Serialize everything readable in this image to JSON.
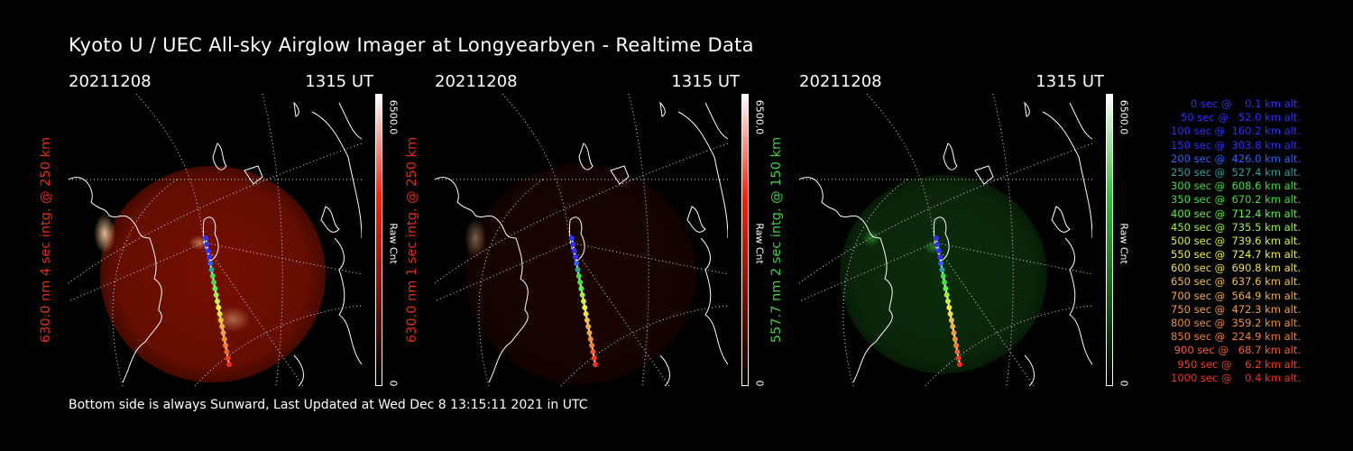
{
  "title": "Kyoto U / UEC All-sky Airglow Imager at Longyearbyen - Realtime Data",
  "footer": "Bottom side is always Sunward, Last Updated at Wed Dec  8 13:15:11 2021 in UTC",
  "panels": [
    {
      "date": "20211208",
      "time": "1315 UT",
      "side_label": "630.0 nm 4 sec intg. @ 250 km",
      "side_color": "#e03010",
      "cbar_max": "6500.0",
      "cbar_min": "0",
      "cbar_unit": "Raw Cnt",
      "image_color": "#8a1200",
      "image_brightness": 0.85,
      "cbar_gradient": "#ff2000"
    },
    {
      "date": "20211208",
      "time": "1315 UT",
      "side_label": "630.0 nm 1 sec intg. @ 250 km",
      "side_color": "#e03010",
      "cbar_max": "6500.0",
      "cbar_min": "0",
      "cbar_unit": "Raw Cnt",
      "image_color": "#3a0700",
      "image_brightness": 0.45,
      "cbar_gradient": "#ff2000"
    },
    {
      "date": "20211208",
      "time": "1315 UT",
      "side_label": "557.7 nm 2 sec intg. @ 150 km",
      "side_color": "#40d040",
      "cbar_max": "6500.0",
      "cbar_min": "0",
      "cbar_unit": "Raw Cnt",
      "image_color": "#124a12",
      "image_brightness": 0.6,
      "cbar_gradient": "#30c030"
    }
  ],
  "legend": [
    {
      "text": "   0 sec @    0.1 km alt.",
      "color": "#3030ff"
    },
    {
      "text": "  50 sec @   52.0 km alt.",
      "color": "#3030ff"
    },
    {
      "text": " 100 sec @  160.2 km alt.",
      "color": "#3030ff"
    },
    {
      "text": " 150 sec @  303.8 km alt.",
      "color": "#3030ff"
    },
    {
      "text": " 200 sec @  426.0 km alt.",
      "color": "#3060ff"
    },
    {
      "text": " 250 sec @  527.4 km alt.",
      "color": "#30a0a0"
    },
    {
      "text": " 300 sec @  608.6 km alt.",
      "color": "#40e040"
    },
    {
      "text": " 350 sec @  670.2 km alt.",
      "color": "#40e040"
    },
    {
      "text": " 400 sec @  712.4 km alt.",
      "color": "#60f040"
    },
    {
      "text": " 450 sec @  735.5 km alt.",
      "color": "#a0f040"
    },
    {
      "text": " 500 sec @  739.6 km alt.",
      "color": "#d0f040"
    },
    {
      "text": " 550 sec @  724.7 km alt.",
      "color": "#f0f040"
    },
    {
      "text": " 600 sec @  690.8 km alt.",
      "color": "#f0e040"
    },
    {
      "text": " 650 sec @  637.6 km alt.",
      "color": "#f0c040"
    },
    {
      "text": " 700 sec @  564.9 km alt.",
      "color": "#f0b040"
    },
    {
      "text": " 750 sec @  472.3 km alt.",
      "color": "#f0a040"
    },
    {
      "text": " 800 sec @  359.2 km alt.",
      "color": "#f09030"
    },
    {
      "text": " 850 sec @  224.9 km alt.",
      "color": "#f08030"
    },
    {
      "text": " 900 sec @   68.7 km alt.",
      "color": "#f06030"
    },
    {
      "text": " 950 sec @    6.2 km alt.",
      "color": "#f04020"
    },
    {
      "text": "1000 sec @    0.4 km alt.",
      "color": "#f03020"
    }
  ]
}
